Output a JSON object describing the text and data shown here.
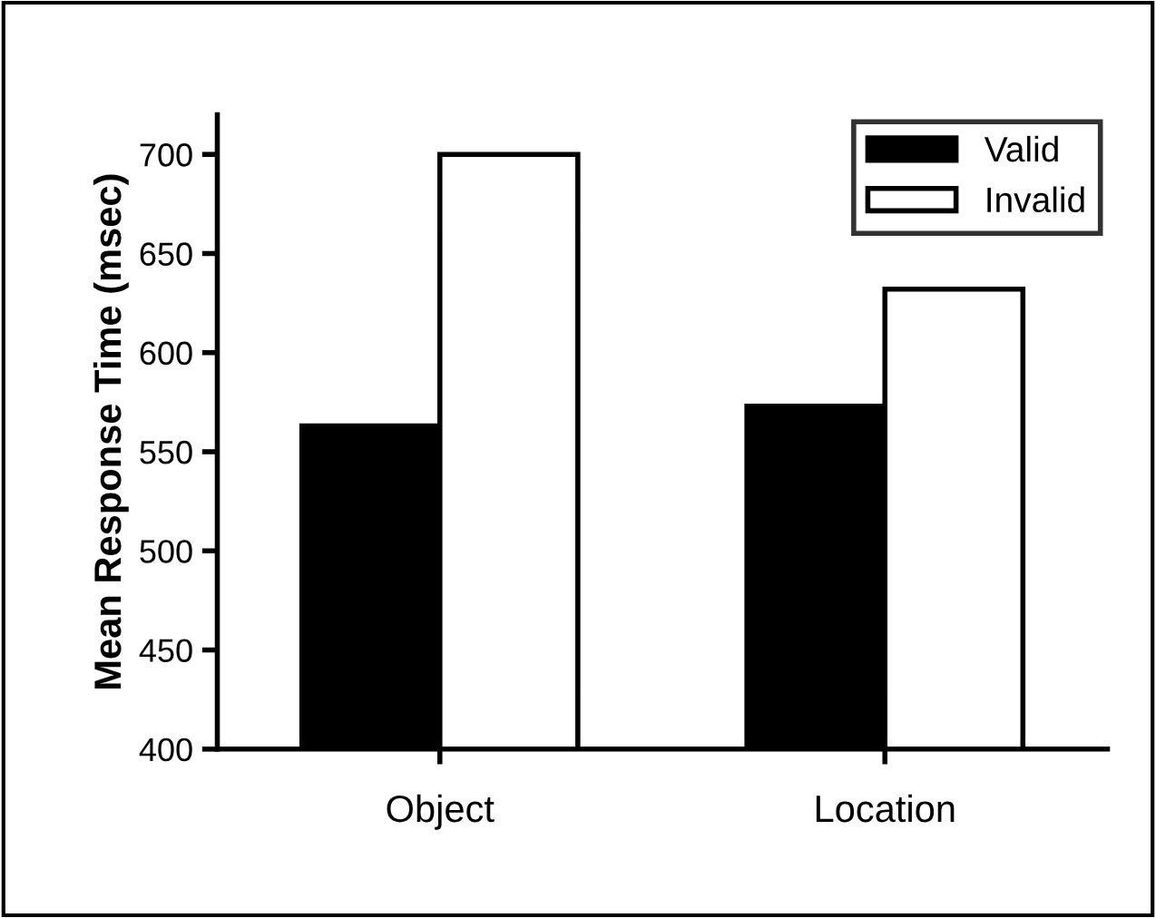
{
  "chart_data": {
    "type": "bar",
    "ylabel": "Mean Response Time (msec)",
    "categories": [
      "Object",
      "Location"
    ],
    "series": [
      {
        "name": "Valid",
        "color": "#000000",
        "values": [
          563,
          573
        ]
      },
      {
        "name": "Invalid",
        "color": "#ffffff",
        "values": [
          700,
          632
        ]
      }
    ],
    "ylim": [
      400,
      720
    ],
    "yticks": [
      400,
      450,
      500,
      550,
      600,
      650,
      700
    ],
    "grid": false,
    "legend": "top right"
  }
}
